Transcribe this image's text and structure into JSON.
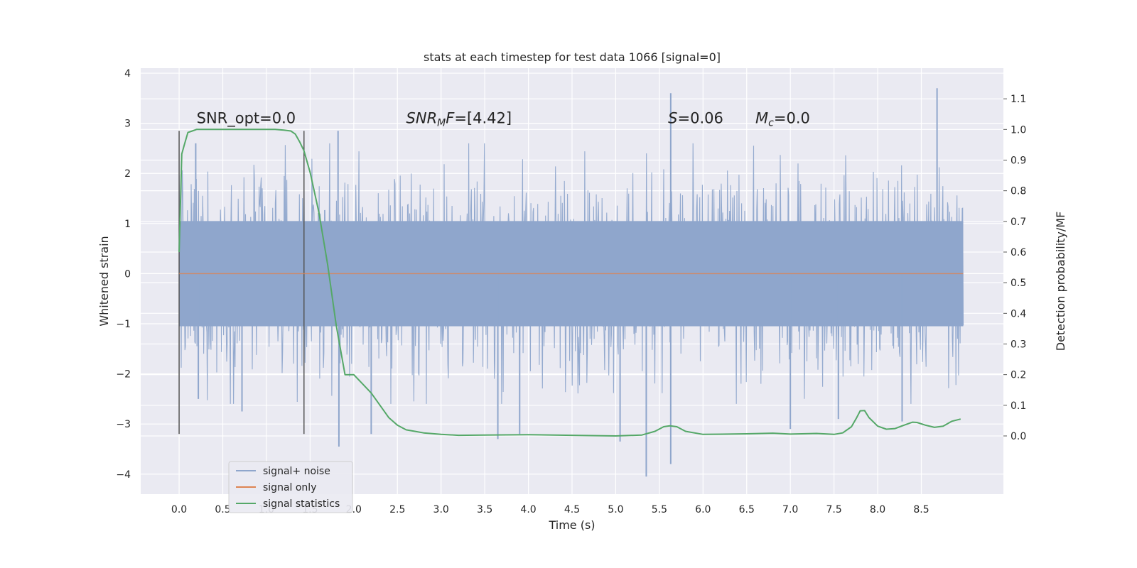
{
  "chart_data": {
    "type": "line",
    "title": "stats at each timestep for test data 1066 [signal=0]",
    "xlabel": "Time (s)",
    "ylabel": "Whitened strain",
    "y2label": "Detection probability/MF",
    "xlim": [
      -0.44,
      9.44
    ],
    "ylim": [
      -4.4,
      4.1
    ],
    "y2lim": [
      -0.19,
      1.2
    ],
    "xticks": [
      0.0,
      0.5,
      1.0,
      1.5,
      2.0,
      2.5,
      3.0,
      3.5,
      4.0,
      4.5,
      5.0,
      5.5,
      6.0,
      6.5,
      7.0,
      7.5,
      8.0,
      8.5
    ],
    "xtick_labels": [
      "0.0",
      "0.5",
      "1.0",
      "1.5",
      "2.0",
      "2.5",
      "3.0",
      "3.5",
      "4.0",
      "4.5",
      "5.0",
      "5.5",
      "6.0",
      "6.5",
      "7.0",
      "7.5",
      "8.0",
      "8.5"
    ],
    "yticks": [
      4,
      3,
      2,
      1,
      0,
      -1,
      -2,
      -3,
      -4
    ],
    "ytick_labels": [
      "4",
      "3",
      "2",
      "1",
      "0",
      "−1",
      "−2",
      "−3",
      "−4"
    ],
    "y2ticks": [
      1.1,
      1.0,
      0.9,
      0.8,
      0.7,
      0.6,
      0.5,
      0.4,
      0.3,
      0.2,
      0.1,
      0.0
    ],
    "y2tick_labels": [
      "1.1",
      "1.0",
      "0.9",
      "0.8",
      "0.7",
      "0.6",
      "0.5",
      "0.4",
      "0.3",
      "0.2",
      "0.1",
      "0.0"
    ],
    "grid": true,
    "legend_placement": "lower-left",
    "noise_envelope": {
      "t_start": 0.0,
      "t_end": 8.98,
      "typical_range": [
        -1.8,
        1.8
      ],
      "peaks": [
        {
          "t": 0.19,
          "y": 2.6
        },
        {
          "t": 0.22,
          "y": -2.5
        },
        {
          "t": 0.72,
          "y": -2.75
        },
        {
          "t": 1.82,
          "y": 2.85
        },
        {
          "t": 1.83,
          "y": -3.45
        },
        {
          "t": 2.2,
          "y": -3.2
        },
        {
          "t": 3.65,
          "y": -3.3
        },
        {
          "t": 3.9,
          "y": -3.2
        },
        {
          "t": 5.05,
          "y": -3.35
        },
        {
          "t": 5.35,
          "y": -4.05
        },
        {
          "t": 5.63,
          "y": 3.6
        },
        {
          "t": 5.63,
          "y": -3.8
        },
        {
          "t": 7.0,
          "y": -3.1
        },
        {
          "t": 7.55,
          "y": -2.9
        },
        {
          "t": 8.28,
          "y": -2.95
        },
        {
          "t": 8.68,
          "y": 3.7
        }
      ]
    },
    "markers": {
      "x": [
        0.0,
        1.43
      ],
      "y_range": [
        -3.2,
        2.85
      ]
    },
    "series": [
      {
        "name": "signal+ noise",
        "color": "#8fa6cc"
      },
      {
        "name": "signal only",
        "color": "#dd8452",
        "x": [
          0.0,
          8.98
        ],
        "y": [
          0.0,
          0.0
        ]
      },
      {
        "name": "signal statistics",
        "color": "#55a868",
        "axis": "right",
        "x": [
          0.0,
          0.03,
          0.06,
          0.1,
          0.15,
          0.2,
          0.3,
          0.5,
          0.8,
          1.0,
          1.1,
          1.2,
          1.28,
          1.33,
          1.38,
          1.43,
          1.5,
          1.6,
          1.7,
          1.8,
          1.9,
          2.0,
          2.1,
          2.2,
          2.3,
          2.4,
          2.5,
          2.6,
          2.7,
          2.8,
          3.0,
          3.2,
          3.5,
          4.0,
          4.5,
          5.0,
          5.3,
          5.45,
          5.55,
          5.62,
          5.7,
          5.8,
          6.0,
          6.5,
          6.8,
          7.0,
          7.3,
          7.5,
          7.6,
          7.7,
          7.76,
          7.8,
          7.85,
          7.9,
          8.0,
          8.1,
          8.2,
          8.3,
          8.4,
          8.45,
          8.55,
          8.65,
          8.75,
          8.85,
          8.95
        ],
        "y": [
          0.6,
          0.92,
          0.95,
          0.99,
          0.995,
          1.0,
          1.0,
          1.0,
          1.0,
          1.0,
          1.0,
          0.998,
          0.995,
          0.985,
          0.96,
          0.93,
          0.86,
          0.73,
          0.56,
          0.36,
          0.2,
          0.2,
          0.17,
          0.14,
          0.1,
          0.06,
          0.035,
          0.02,
          0.015,
          0.01,
          0.005,
          0.002,
          0.003,
          0.004,
          0.002,
          0.0,
          0.003,
          0.015,
          0.03,
          0.033,
          0.03,
          0.015,
          0.005,
          0.007,
          0.009,
          0.006,
          0.008,
          0.005,
          0.01,
          0.03,
          0.06,
          0.082,
          0.083,
          0.06,
          0.032,
          0.022,
          0.024,
          0.035,
          0.045,
          0.044,
          0.035,
          0.028,
          0.032,
          0.048,
          0.055
        ]
      }
    ],
    "annotations": [
      {
        "x": 0.2,
        "y": 3.0,
        "parts": [
          {
            "text": "SNR_opt=0.0",
            "style": "normal"
          }
        ]
      },
      {
        "x": 2.6,
        "y": 3.0,
        "parts": [
          {
            "text": "SNR",
            "style": "italic"
          },
          {
            "text": "M",
            "style": "italic-sub"
          },
          {
            "text": "F",
            "style": "italic"
          },
          {
            "text": "=[4.42]",
            "style": "normal"
          }
        ]
      },
      {
        "x": 5.6,
        "y": 3.0,
        "parts": [
          {
            "text": "S",
            "style": "italic"
          },
          {
            "text": "=0.06",
            "style": "normal"
          }
        ]
      },
      {
        "x": 6.6,
        "y": 3.0,
        "parts": [
          {
            "text": "M",
            "style": "italic"
          },
          {
            "text": "c",
            "style": "italic-sub"
          },
          {
            "text": "=0.0",
            "style": "normal"
          }
        ]
      }
    ]
  }
}
